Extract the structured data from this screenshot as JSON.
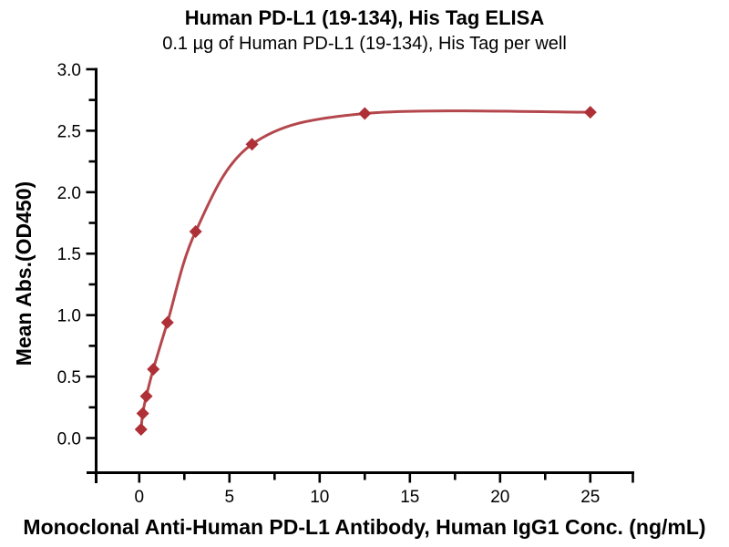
{
  "page": {
    "background": "#FFFFFF"
  },
  "chart_data": {
    "type": "scatter",
    "curve": "4PL-fit-line",
    "title": "Human PD-L1 (19-134), His Tag ELISA",
    "subtitle": "0.1 µg of Human PD-L1 (19-134), His Tag per well",
    "xlabel": "Monoclonal Anti-Human PD-L1 Antibody, Human IgG1 Conc. (ng/mL)",
    "ylabel": "Mean Abs.(OD450)",
    "x": [
      0.098,
      0.195,
      0.39,
      0.78,
      1.5625,
      3.125,
      6.25,
      12.5,
      25
    ],
    "y": [
      0.07,
      0.2,
      0.34,
      0.56,
      0.94,
      1.68,
      2.39,
      2.64,
      2.65
    ],
    "xticks": [
      0,
      5,
      10,
      15,
      20,
      25
    ],
    "xtick_labels": [
      "0",
      "5",
      "10",
      "15",
      "20",
      "25"
    ],
    "x_minor_ticks": [
      2.5,
      7.5,
      12.5,
      17.5,
      22.5
    ],
    "yticks": [
      0,
      0.5,
      1.0,
      1.5,
      2.0,
      2.5,
      3.0
    ],
    "ytick_labels": [
      "0.0",
      "0.5",
      "1.0",
      "1.5",
      "2.0",
      "2.5",
      "3.0"
    ],
    "y_minor_ticks": [
      0.25,
      0.75,
      1.25,
      1.75,
      2.25,
      2.75
    ],
    "xlim": [
      -2.5,
      27.5
    ],
    "ylim": [
      -0.3,
      3.0
    ],
    "grid": false,
    "legend": "none",
    "marker_shape": "diamond",
    "marker_color": "#AE3036",
    "line_color": "#B4474C",
    "axis_color": "#000000",
    "background_color": "#FFFFFF"
  }
}
